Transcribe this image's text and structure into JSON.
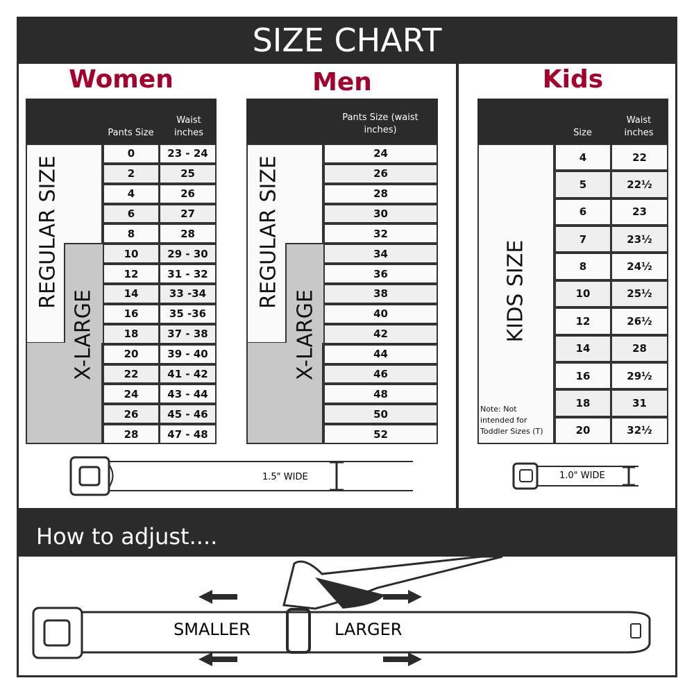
{
  "title": "SIZE CHART",
  "women": {
    "heading": "Women",
    "col1": "Pants Size",
    "col2": "Waist inches",
    "regular_label": "REGULAR SIZE",
    "xl_label": "X-LARGE",
    "rows": [
      [
        "0",
        "23 - 24"
      ],
      [
        "2",
        "25"
      ],
      [
        "4",
        "26"
      ],
      [
        "6",
        "27"
      ],
      [
        "8",
        "28"
      ],
      [
        "10",
        "29 - 30"
      ],
      [
        "12",
        "31 - 32"
      ],
      [
        "14",
        "33 -34"
      ],
      [
        "16",
        "35 -36"
      ],
      [
        "18",
        "37 - 38"
      ],
      [
        "20",
        "39 - 40"
      ],
      [
        "22",
        "41 - 42"
      ],
      [
        "24",
        "43 - 44"
      ],
      [
        "26",
        "45 - 46"
      ],
      [
        "28",
        "47 - 48"
      ]
    ],
    "belt_width": "1.5\" WIDE"
  },
  "men": {
    "heading": "Men",
    "col1": "Pants Size (waist inches)",
    "regular_label": "REGULAR SIZE",
    "xl_label": "X-LARGE",
    "rows": [
      "24",
      "26",
      "28",
      "30",
      "32",
      "34",
      "36",
      "38",
      "40",
      "42",
      "44",
      "46",
      "48",
      "50",
      "52"
    ]
  },
  "kids": {
    "heading": "Kids",
    "col1": "Size",
    "col2": "Waist inches",
    "label": "KIDS SIZE",
    "note": "Note: Not intended for Toddler Sizes (T)",
    "rows": [
      [
        "4",
        "22"
      ],
      [
        "5",
        "22½"
      ],
      [
        "6",
        "23"
      ],
      [
        "7",
        "23½"
      ],
      [
        "8",
        "24½"
      ],
      [
        "10",
        "25½"
      ],
      [
        "12",
        "26½"
      ],
      [
        "14",
        "28"
      ],
      [
        "16",
        "29½"
      ],
      [
        "18",
        "31"
      ],
      [
        "20",
        "32½"
      ]
    ],
    "belt_width": "1.0\" WIDE"
  },
  "adjust": {
    "heading": "How to adjust....",
    "smaller": "SMALLER",
    "larger": "LARGER"
  },
  "colors": {
    "dark": "#2b2b2b",
    "heading": "#a3002d",
    "xl": "#c8c8c8"
  }
}
